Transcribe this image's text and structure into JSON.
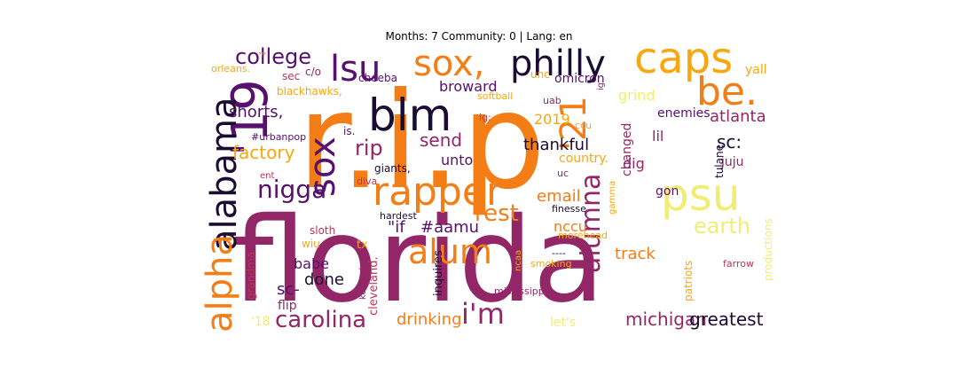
{
  "title": "Months: 7 Community: 0 | Lang: en",
  "palette": {
    "dark": "#1a0c33",
    "purple": "#56106e",
    "magenta": "#932667",
    "red": "#bb3754",
    "orange": "#f57d15",
    "amber": "#f9a70e",
    "yellow": "#f1ed71"
  },
  "words": [
    {
      "text": "florida",
      "color": "#932667"
    },
    {
      "text": "r.i.p",
      "color": "#f57d15"
    },
    {
      "text": "rapper",
      "color": "#f57d15"
    },
    {
      "text": "blm",
      "color": "#1a0c33"
    },
    {
      "text": "caps",
      "color": "#f9a70e"
    },
    {
      "text": "philly",
      "color": "#1a0c33"
    },
    {
      "text": "sox,",
      "color": "#f57d15"
    },
    {
      "text": "lsu",
      "color": "#56106e"
    },
    {
      "text": "'19",
      "color": "#56106e"
    },
    {
      "text": "'21",
      "color": "#f57d15"
    },
    {
      "text": "be.",
      "color": "#f57d15"
    },
    {
      "text": "psu",
      "color": "#f1ed71"
    },
    {
      "text": "sox",
      "color": "#56106e"
    },
    {
      "text": "alabama",
      "color": "#1a0c33"
    },
    {
      "text": "alpha",
      "color": "#f57d15"
    },
    {
      "text": "college",
      "color": "#56106e"
    },
    {
      "text": "nigga",
      "color": "#56106e"
    },
    {
      "text": "alum",
      "color": "#f57d15"
    },
    {
      "text": "alumna",
      "color": "#932667"
    },
    {
      "text": "i'm",
      "color": "#932667"
    },
    {
      "text": "rest",
      "color": "#f57d15"
    },
    {
      "text": "rip",
      "color": "#932667"
    },
    {
      "text": "send",
      "color": "#932667"
    },
    {
      "text": "earth",
      "color": "#f1ed71"
    },
    {
      "text": "carolina",
      "color": "#932667"
    },
    {
      "text": "michigan",
      "color": "#932667"
    },
    {
      "text": "greatest",
      "color": "#1a0c33"
    },
    {
      "text": "shorts,",
      "color": "#56106e"
    },
    {
      "text": "factory",
      "color": "#f9a70e"
    },
    {
      "text": "thankful",
      "color": "#1a0c33"
    },
    {
      "text": "atlanta",
      "color": "#932667"
    },
    {
      "text": "sc:",
      "color": "#1a0c33"
    },
    {
      "text": "track",
      "color": "#f57d15"
    },
    {
      "text": "email",
      "color": "#f57d15"
    },
    {
      "text": "drinking",
      "color": "#f57d15"
    },
    {
      "text": "done",
      "color": "#1a0c33"
    },
    {
      "text": "babe",
      "color": "#56106e"
    },
    {
      "text": "sc-",
      "color": "#56106e"
    },
    {
      "text": "flip",
      "color": "#932667"
    },
    {
      "text": "#aamu",
      "color": "#56106e"
    },
    {
      "text": "\"if",
      "color": "#56106e"
    },
    {
      "text": "nccu",
      "color": "#f57d15"
    },
    {
      "text": "dig",
      "color": "#932667"
    },
    {
      "text": "lil",
      "color": "#932667"
    },
    {
      "text": "broward",
      "color": "#56106e"
    },
    {
      "text": "unto",
      "color": "#56106e"
    },
    {
      "text": "2019",
      "color": "#f9a70e"
    },
    {
      "text": "grind",
      "color": "#f1ed71"
    },
    {
      "text": "omicron",
      "color": "#56106e"
    },
    {
      "text": "enemies",
      "color": "#56106e"
    },
    {
      "text": "country.",
      "color": "#f9a70e"
    },
    {
      "text": "changed",
      "color": "#932667"
    },
    {
      "text": "gon",
      "color": "#56106e"
    },
    {
      "text": "juju",
      "color": "#932667"
    },
    {
      "text": "tulane",
      "color": "#1a0c33"
    },
    {
      "text": "yall",
      "color": "#f9a70e"
    },
    {
      "text": "unc",
      "color": "#f9a70e"
    },
    {
      "text": "cheeba",
      "color": "#56106e"
    },
    {
      "text": "c/o",
      "color": "#932667"
    },
    {
      "text": "sec",
      "color": "#bb3754"
    },
    {
      "text": "blackhawks,",
      "color": "#f9a70e"
    },
    {
      "text": "softball",
      "color": "#f9a70e"
    },
    {
      "text": "uab",
      "color": "#932667"
    },
    {
      "text": "ig:",
      "color": "#bb3754"
    },
    {
      "text": "ig",
      "color": "#932667"
    },
    {
      "text": "ccu",
      "color": "#f9a70e"
    },
    {
      "text": "is.",
      "color": "#56106e"
    },
    {
      "text": "#urbanpop",
      "color": "#56106e"
    },
    {
      "text": "giants,",
      "color": "#1a0c33"
    },
    {
      "text": "diva",
      "color": "#bb3754"
    },
    {
      "text": "ent",
      "color": "#bb3754"
    },
    {
      "text": "uc",
      "color": "#932667"
    },
    {
      "text": "gamma",
      "color": "#f9a70e"
    },
    {
      "text": "finesse",
      "color": "#1a0c33"
    },
    {
      "text": "hardest",
      "color": "#1a0c33"
    },
    {
      "text": "sloth",
      "color": "#bb3754"
    },
    {
      "text": "wiu",
      "color": "#f9a70e"
    },
    {
      "text": "tx",
      "color": "#f9a70e"
    },
    {
      "text": "morehead",
      "color": "#f9a70e"
    },
    {
      "text": "kentucky",
      "color": "#932667"
    },
    {
      "text": "cleveland.",
      "color": "#bb3754"
    },
    {
      "text": "inquires",
      "color": "#1a0c33"
    },
    {
      "text": "ncaa",
      "color": "#f9a70e"
    },
    {
      "text": "mississippi",
      "color": "#932667"
    },
    {
      "text": "smoking",
      "color": "#f9a70e"
    },
    {
      "text": "farrow",
      "color": "#bb3754"
    },
    {
      "text": "patriots",
      "color": "#f9a70e"
    },
    {
      "text": "productions",
      "color": "#f1ed71"
    },
    {
      "text": "grandma",
      "color": "#bb3754"
    },
    {
      "text": "'18",
      "color": "#f1ed71"
    },
    {
      "text": "orleans.",
      "color": "#f9a70e"
    },
    {
      "text": "let's",
      "color": "#f1ed71"
    },
    {
      "text": "----",
      "color": "#1a0c33"
    },
    {
      "text": "™",
      "color": "#f57d15"
    }
  ]
}
